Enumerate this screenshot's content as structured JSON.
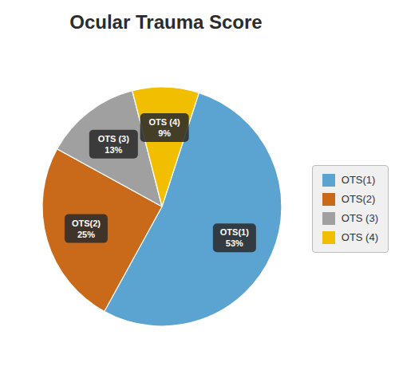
{
  "chart_data": {
    "type": "pie",
    "title": "Ocular Trauma Score",
    "categories": [
      "OTS(1)",
      "OTS(2)",
      "OTS (3)",
      "OTS (4)"
    ],
    "values": [
      53,
      25,
      13,
      9
    ],
    "value_labels": [
      "OTS(1)\n53%",
      "OTS(2)\n25%",
      "OTS (3)\n13%",
      "OTS (4)\n9%"
    ],
    "colors": [
      "#5BA3D0",
      "#C96A1A",
      "#A0A0A0",
      "#F2BE00"
    ],
    "data_labels": true,
    "legend": "right"
  }
}
